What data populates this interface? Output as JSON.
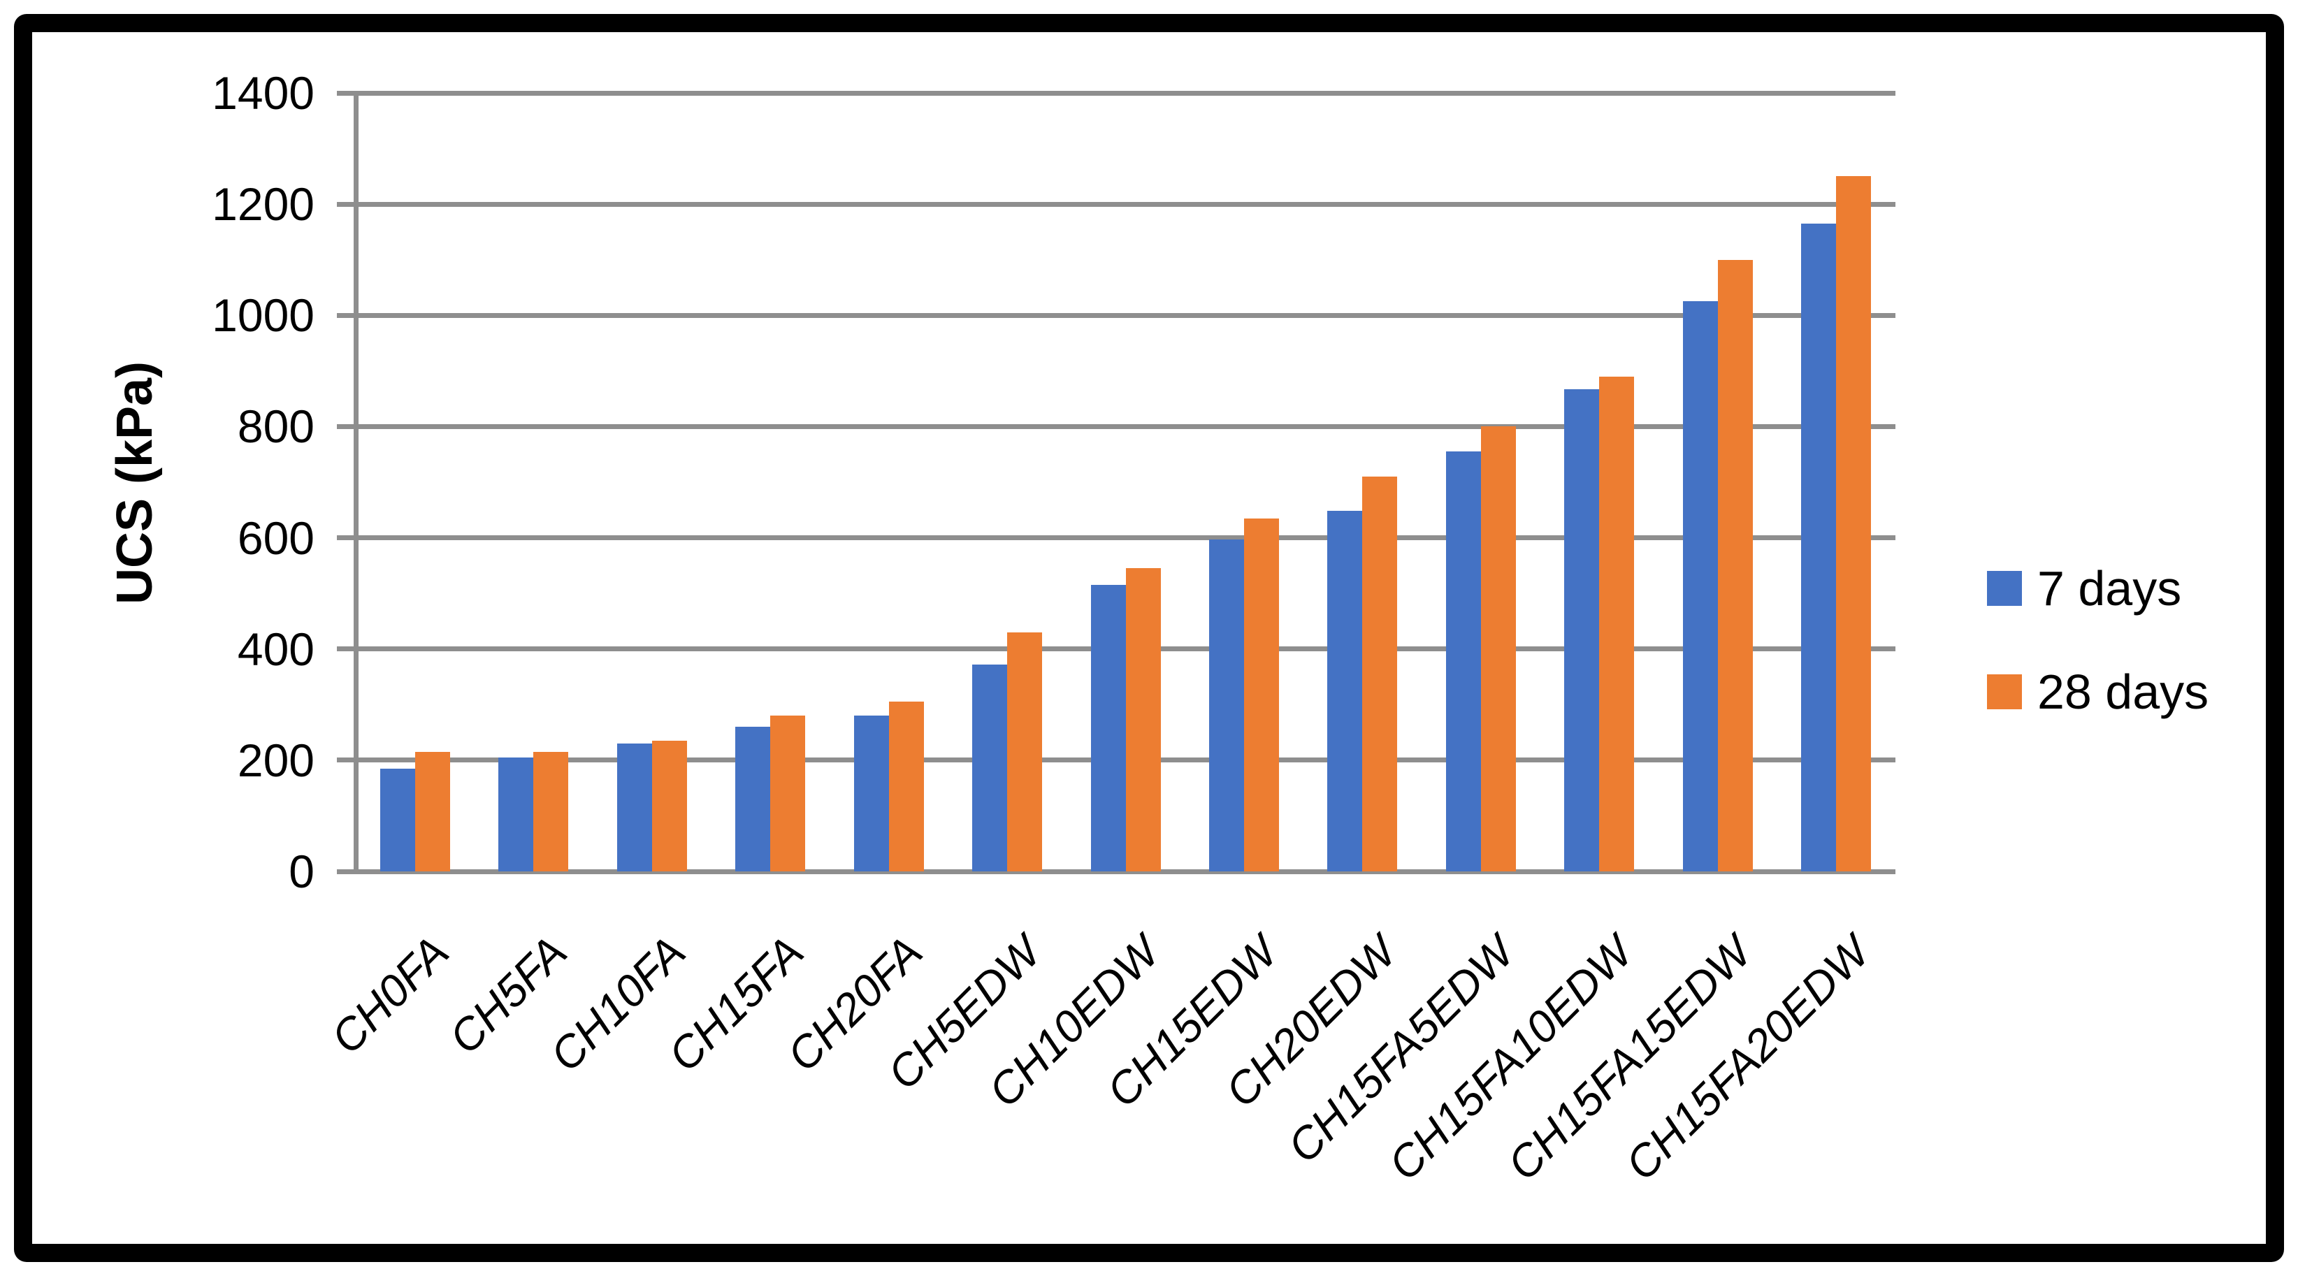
{
  "chart_data": {
    "type": "bar",
    "title": "",
    "categories": [
      "CH0FA",
      "CH5FA",
      "CH10FA",
      "CH15FA",
      "CH20FA",
      "CH5EDW",
      "CH10EDW",
      "CH15EDW",
      "CH20EDW",
      "CH15FA5EDW",
      "CH15FA10EDW",
      "CH15FA15EDW",
      "CH15FA20EDW"
    ],
    "series": [
      {
        "name": "7 days",
        "color": "#4472C4",
        "values": [
          185,
          205,
          230,
          260,
          280,
          372,
          515,
          597,
          648,
          755,
          867,
          1025,
          1165
        ]
      },
      {
        "name": "28 days",
        "color": "#ED7D31",
        "values": [
          215,
          215,
          235,
          280,
          305,
          430,
          545,
          635,
          710,
          800,
          890,
          1100,
          1250
        ]
      }
    ],
    "xlabel": "",
    "ylabel": "UCS (kPa)",
    "ylim": [
      0,
      1400
    ],
    "ytick_step": 200,
    "yticks": [
      0,
      200,
      400,
      600,
      800,
      1000,
      1200,
      1400
    ],
    "grid": "horizontal-major",
    "gridline_color": "#8E8E8E",
    "legend_position": "right",
    "bar_colors": {
      "blue": "#4472C4",
      "orange": "#ED7D31"
    }
  }
}
